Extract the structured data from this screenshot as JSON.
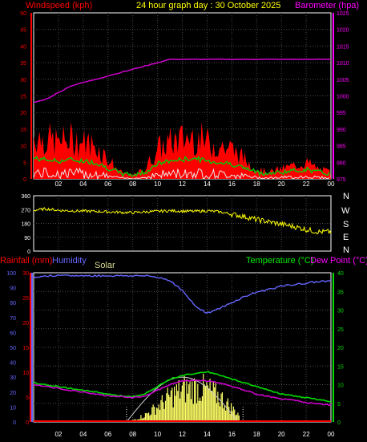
{
  "header": {
    "title": "24 hour graph day : 30 October 2025",
    "left_label": "Windspeed (kph)",
    "right_label": "Barometer (hpa)"
  },
  "wind_panel": {
    "ylim": [
      0,
      50
    ],
    "left_ticks": [
      "0",
      "5",
      "10",
      "15",
      "20",
      "25",
      "30",
      "35",
      "40",
      "45",
      "50"
    ],
    "pressure_ylim": [
      975,
      1025
    ],
    "right_ticks": [
      "975",
      "980",
      "985",
      "990",
      "995",
      "1000",
      "1005",
      "1010",
      "1015",
      "1020",
      "1025"
    ]
  },
  "direction_panel": {
    "ylim": [
      0,
      360
    ],
    "left_ticks": [
      "0",
      "90",
      "180",
      "270",
      "360"
    ],
    "compass": [
      "N",
      "W",
      "S",
      "E",
      "N"
    ]
  },
  "bottom_panel": {
    "rain_label": "Rainfall (mm)",
    "humidity_label": "Humidity",
    "solar_label": "Solar",
    "temp_label": "Temperature (°C)",
    "dew_label": "Dew Point (°C)",
    "humidity_ticks": [
      "0",
      "10",
      "20",
      "30",
      "40",
      "50",
      "60",
      "70",
      "80",
      "90",
      "100"
    ],
    "rain_ticks": [
      "0",
      "5",
      "10",
      "15",
      "20",
      "25",
      "30"
    ],
    "temp_ticks": [
      "0",
      "5",
      "10",
      "15",
      "20",
      "25",
      "30",
      "35",
      "40"
    ]
  },
  "x_ticks": [
    "02",
    "04",
    "06",
    "08",
    "10",
    "12",
    "14",
    "16",
    "18",
    "20",
    "22",
    "00"
  ],
  "colors": {
    "wind": "#ff0000",
    "gust": "#00cc00",
    "pressure": "#cc00cc",
    "direction": "#ffff00",
    "humidity": "#6666ff",
    "temperature": "#00dd00",
    "dewpoint": "#cc00cc",
    "solar": "#ffff66",
    "rain": "#ff0000"
  },
  "chart_data": [
    {
      "type": "line",
      "title": "24 hour graph day : 30 October 2025",
      "xlabel": "",
      "ylabel": "Windspeed (kph)",
      "x": [
        0,
        1,
        2,
        3,
        4,
        5,
        6,
        7,
        8,
        9,
        10,
        11,
        12,
        13,
        14,
        15,
        16,
        17,
        18,
        19,
        20,
        21,
        22,
        23,
        24
      ],
      "series": [
        {
          "name": "Windspeed (kph)",
          "values": [
            13,
            12,
            11,
            12,
            11,
            10,
            6,
            2,
            1,
            3,
            9,
            11,
            12,
            13,
            11,
            10,
            9,
            6,
            3,
            2,
            3,
            4,
            5,
            3,
            2
          ]
        },
        {
          "name": "Barometer (hpa)",
          "values": [
            998,
            999,
            1001,
            1003,
            1004,
            1005,
            1006,
            1007,
            1008,
            1009,
            1010,
            1011,
            1011,
            1011,
            1011,
            1011,
            1011,
            1011,
            1011,
            1011,
            1011,
            1011,
            1011,
            1011,
            1011
          ]
        }
      ],
      "ylim": [
        0,
        50
      ],
      "y2lim": [
        975,
        1025
      ]
    },
    {
      "type": "line",
      "title": "",
      "ylabel": "",
      "x": [
        0,
        1,
        2,
        3,
        4,
        5,
        6,
        7,
        8,
        9,
        10,
        11,
        12,
        13,
        14,
        15,
        16,
        17,
        18,
        19,
        20,
        21,
        22,
        23,
        24
      ],
      "series": [
        {
          "name": "",
          "values": [
            265,
            275,
            265,
            262,
            260,
            258,
            255,
            252,
            250,
            255,
            258,
            262,
            260,
            258,
            262,
            255,
            240,
            225,
            205,
            190,
            175,
            160,
            140,
            125,
            125
          ]
        }
      ],
      "ylim": [
        0,
        360
      ]
    },
    {
      "type": "line",
      "title": "",
      "x": [
        0,
        1,
        2,
        3,
        4,
        5,
        6,
        7,
        8,
        9,
        10,
        11,
        12,
        13,
        14,
        15,
        16,
        17,
        18,
        19,
        20,
        21,
        22,
        23,
        24
      ],
      "series": [
        {
          "name": "Humidity",
          "values": [
            97,
            98,
            98,
            98,
            98,
            98,
            98,
            98,
            98,
            98,
            97,
            95,
            88,
            78,
            73,
            76,
            80,
            84,
            87,
            89,
            91,
            92,
            93,
            94,
            95
          ]
        },
        {
          "name": "Temperature (°C)",
          "values": [
            10.5,
            10,
            9.5,
            9,
            8.5,
            8,
            7.5,
            7,
            6.8,
            7.5,
            9.5,
            11.5,
            12.5,
            13,
            13.5,
            12.5,
            11.5,
            10.5,
            9.5,
            8.5,
            7.5,
            7,
            6.5,
            6,
            5.5
          ]
        },
        {
          "name": "Dew Point (°C)",
          "values": [
            10,
            9.5,
            9,
            8.5,
            8,
            7.5,
            7,
            6.8,
            6.5,
            7,
            8.5,
            10,
            11,
            11.2,
            11,
            10.5,
            9.5,
            8.5,
            7.5,
            6.8,
            6.2,
            5.8,
            5.2,
            4.8,
            4.5
          ]
        },
        {
          "name": "Solar",
          "values": [
            0,
            0,
            0,
            0,
            0,
            0,
            0,
            0,
            5,
            20,
            45,
            75,
            95,
            100,
            95,
            75,
            40,
            10,
            0,
            0,
            0,
            0,
            0,
            0,
            0
          ]
        },
        {
          "name": "Rainfall (mm)",
          "values": [
            0,
            0,
            0,
            0,
            0,
            0,
            0,
            0,
            0,
            0,
            0,
            0,
            0,
            0,
            0,
            0,
            0,
            0,
            0,
            0,
            0,
            0,
            0,
            0,
            0
          ]
        }
      ],
      "ylim": [
        0,
        100
      ],
      "y2lim": [
        0,
        40
      ]
    }
  ]
}
